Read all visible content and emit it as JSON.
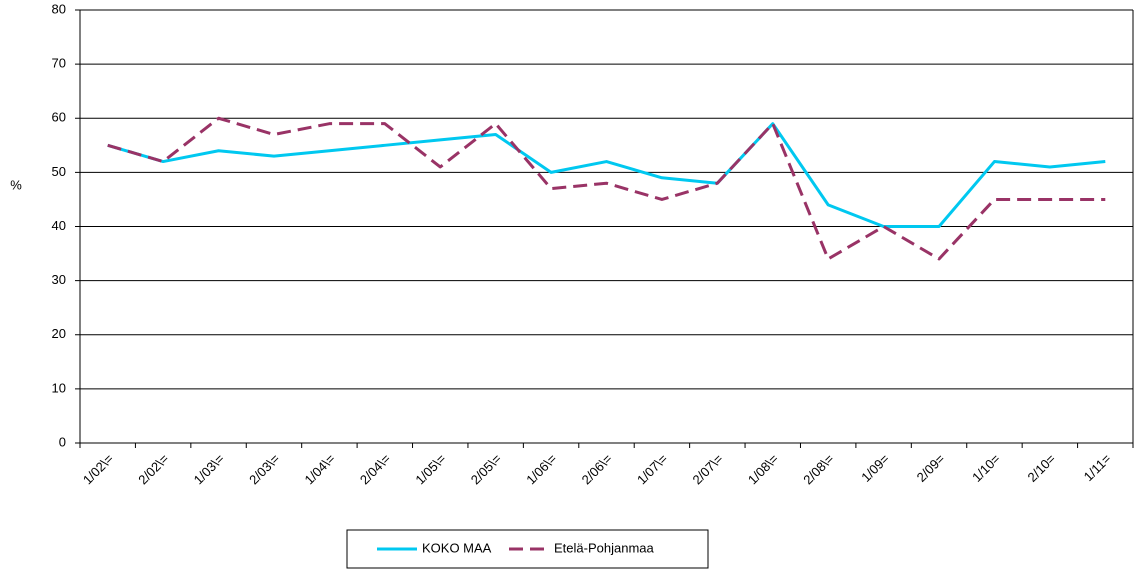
{
  "chart_data": {
    "type": "line",
    "ylabel": "%",
    "categories": [
      "1/02\\=",
      "2/02\\=",
      "1/03\\=",
      "2/03\\=",
      "1/04\\=",
      "2/04\\=",
      "1/05\\=",
      "2/05\\=",
      "1/06\\=",
      "2/06\\=",
      "1/07\\=",
      "2/07\\=",
      "1/08\\=",
      "2/08\\=",
      "1/09=",
      "2/09=",
      "1/10=",
      "2/10=",
      "1/11="
    ],
    "series": [
      {
        "name": "KOKO MAA",
        "color": "#00c8f0",
        "dash": false,
        "values": [
          55,
          52,
          54,
          53,
          54,
          55,
          56,
          57,
          50,
          52,
          49,
          48,
          59,
          44,
          40,
          40,
          52,
          51,
          52
        ]
      },
      {
        "name": "Etelä-Pohjanmaa",
        "color": "#993366",
        "dash": true,
        "values": [
          55,
          52,
          60,
          57,
          59,
          59,
          51,
          59,
          47,
          48,
          45,
          48,
          59,
          34,
          40,
          34,
          45,
          45,
          45
        ]
      }
    ],
    "ylim": [
      0,
      80
    ],
    "yticks": [
      0,
      10,
      20,
      30,
      40,
      50,
      60,
      70,
      80
    ],
    "grid": true,
    "legend": "bottom"
  }
}
